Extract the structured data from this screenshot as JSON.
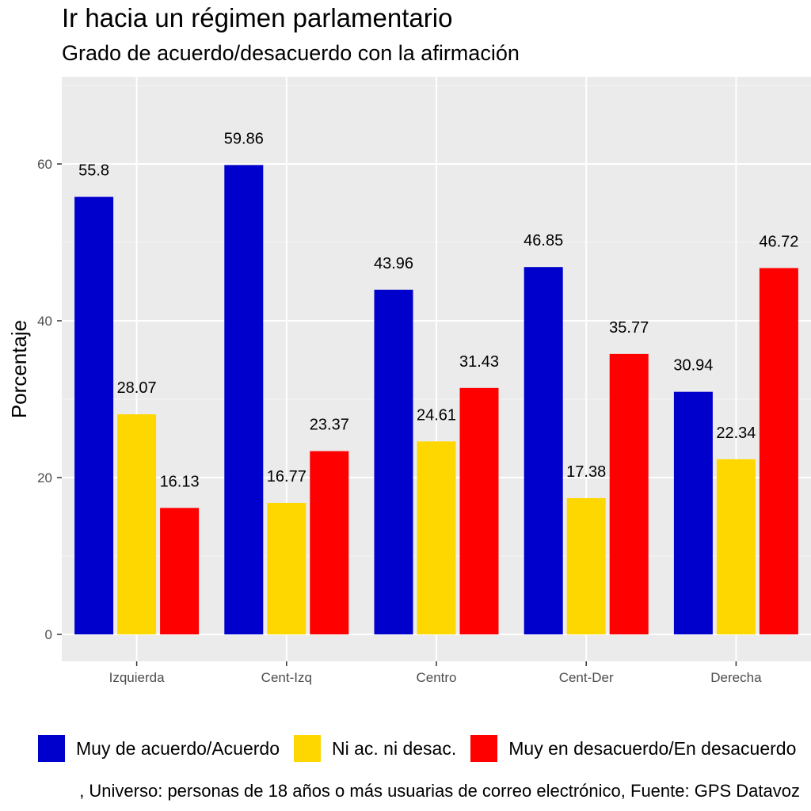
{
  "chart_data": {
    "type": "bar",
    "title": "Ir hacia un régimen parlamentario",
    "subtitle": "Grado de acuerdo/desacuerdo con la afirmación",
    "xlabel": "",
    "ylabel": "Porcentaje",
    "ylim": [
      -3,
      70
    ],
    "yticks": [
      0,
      20,
      40,
      60
    ],
    "grid": true,
    "legend_position": "bottom",
    "categories": [
      "Izquierda",
      "Cent-Izq",
      "Centro",
      "Cent-Der",
      "Derecha"
    ],
    "series": [
      {
        "name": "Muy de acuerdo/Acuerdo",
        "color": "#0000CD",
        "values": [
          55.8,
          59.86,
          43.96,
          46.85,
          30.94
        ]
      },
      {
        "name": "Ni ac. ni desac.",
        "color": "#FFD700",
        "values": [
          28.07,
          16.77,
          24.61,
          17.38,
          22.34
        ]
      },
      {
        "name": "Muy en desacuerdo/En desacuerdo",
        "color": "#FF0000",
        "values": [
          16.13,
          23.37,
          31.43,
          35.77,
          46.72
        ]
      }
    ],
    "caption": ", Universo: personas de 18 años o más usuarias de correo electrónico, Fuente: GPS Datavoz"
  }
}
